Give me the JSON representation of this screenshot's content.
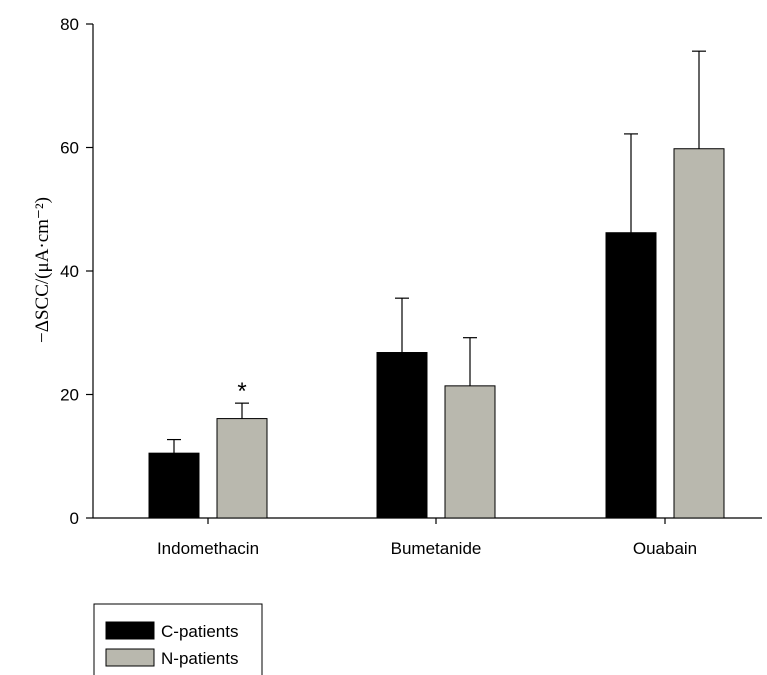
{
  "chart_data": {
    "type": "bar",
    "categories": [
      "Indomethacin",
      "Bumetanide",
      "Ouabain"
    ],
    "series": [
      {
        "name": "C-patients",
        "color": "#000000",
        "values": [
          10.5,
          26.8,
          46.2
        ],
        "errors": [
          2.2,
          8.8,
          16.0
        ]
      },
      {
        "name": "N-patients",
        "color": "#b9b8ae",
        "values": [
          16.1,
          21.4,
          59.8
        ],
        "errors": [
          2.5,
          7.8,
          15.8
        ]
      }
    ],
    "ylabel": "−ΔSCC/(μA·cm⁻²)",
    "ylim": [
      0,
      80
    ],
    "yticks": [
      "0",
      "20",
      "40",
      "60",
      "80"
    ],
    "annotations": [
      {
        "category": "Indomethacin",
        "series": "N-patients",
        "text": "*"
      }
    ],
    "legend_position": "bottom-left",
    "grid": false
  }
}
